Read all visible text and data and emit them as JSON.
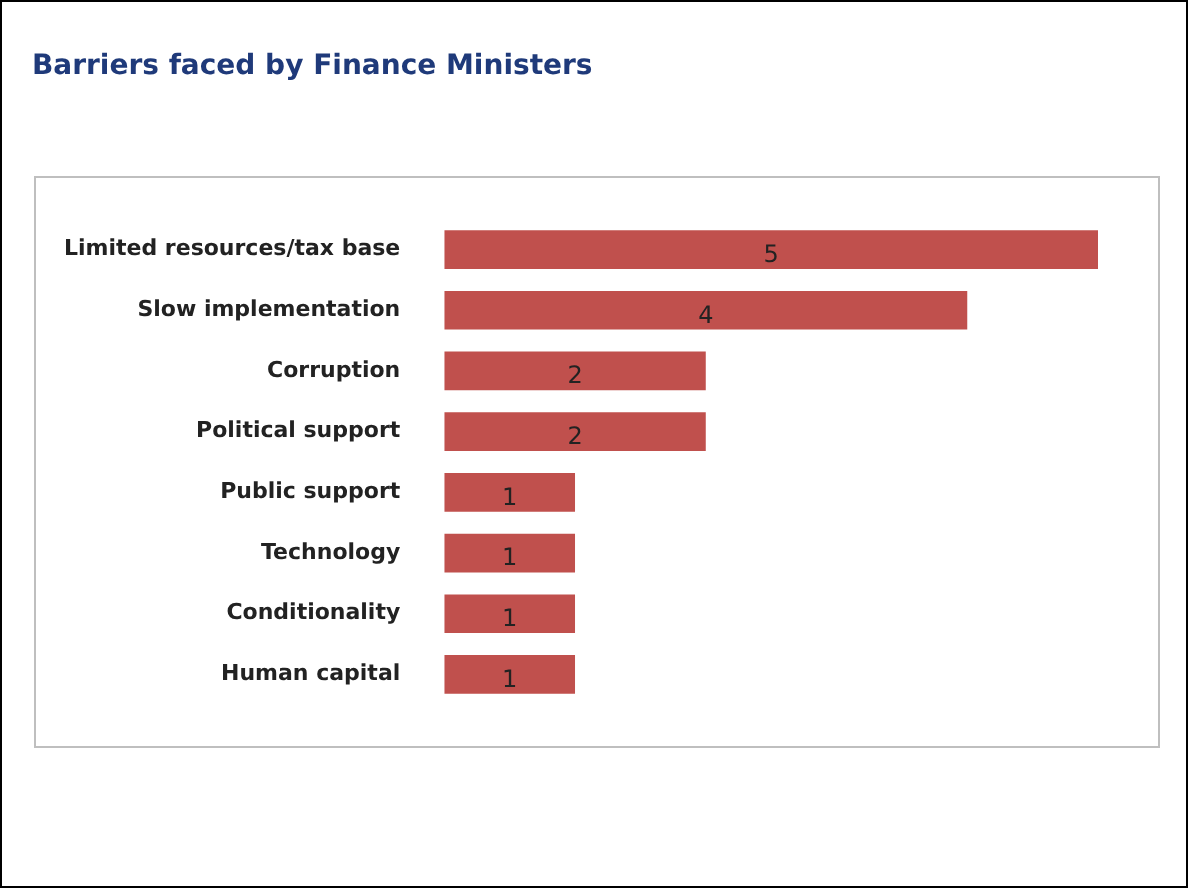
{
  "chart_data": {
    "type": "bar",
    "orientation": "horizontal",
    "title": "Barriers faced by Finance Ministers",
    "categories": [
      "Limited resources/tax base",
      "Slow implementation",
      "Corruption",
      "Political support",
      "Public support",
      "Technology",
      "Conditionality",
      "Human capital"
    ],
    "values": [
      5,
      4,
      2,
      2,
      1,
      1,
      1,
      1
    ],
    "color": "#c0504d",
    "data_labels": true
  }
}
